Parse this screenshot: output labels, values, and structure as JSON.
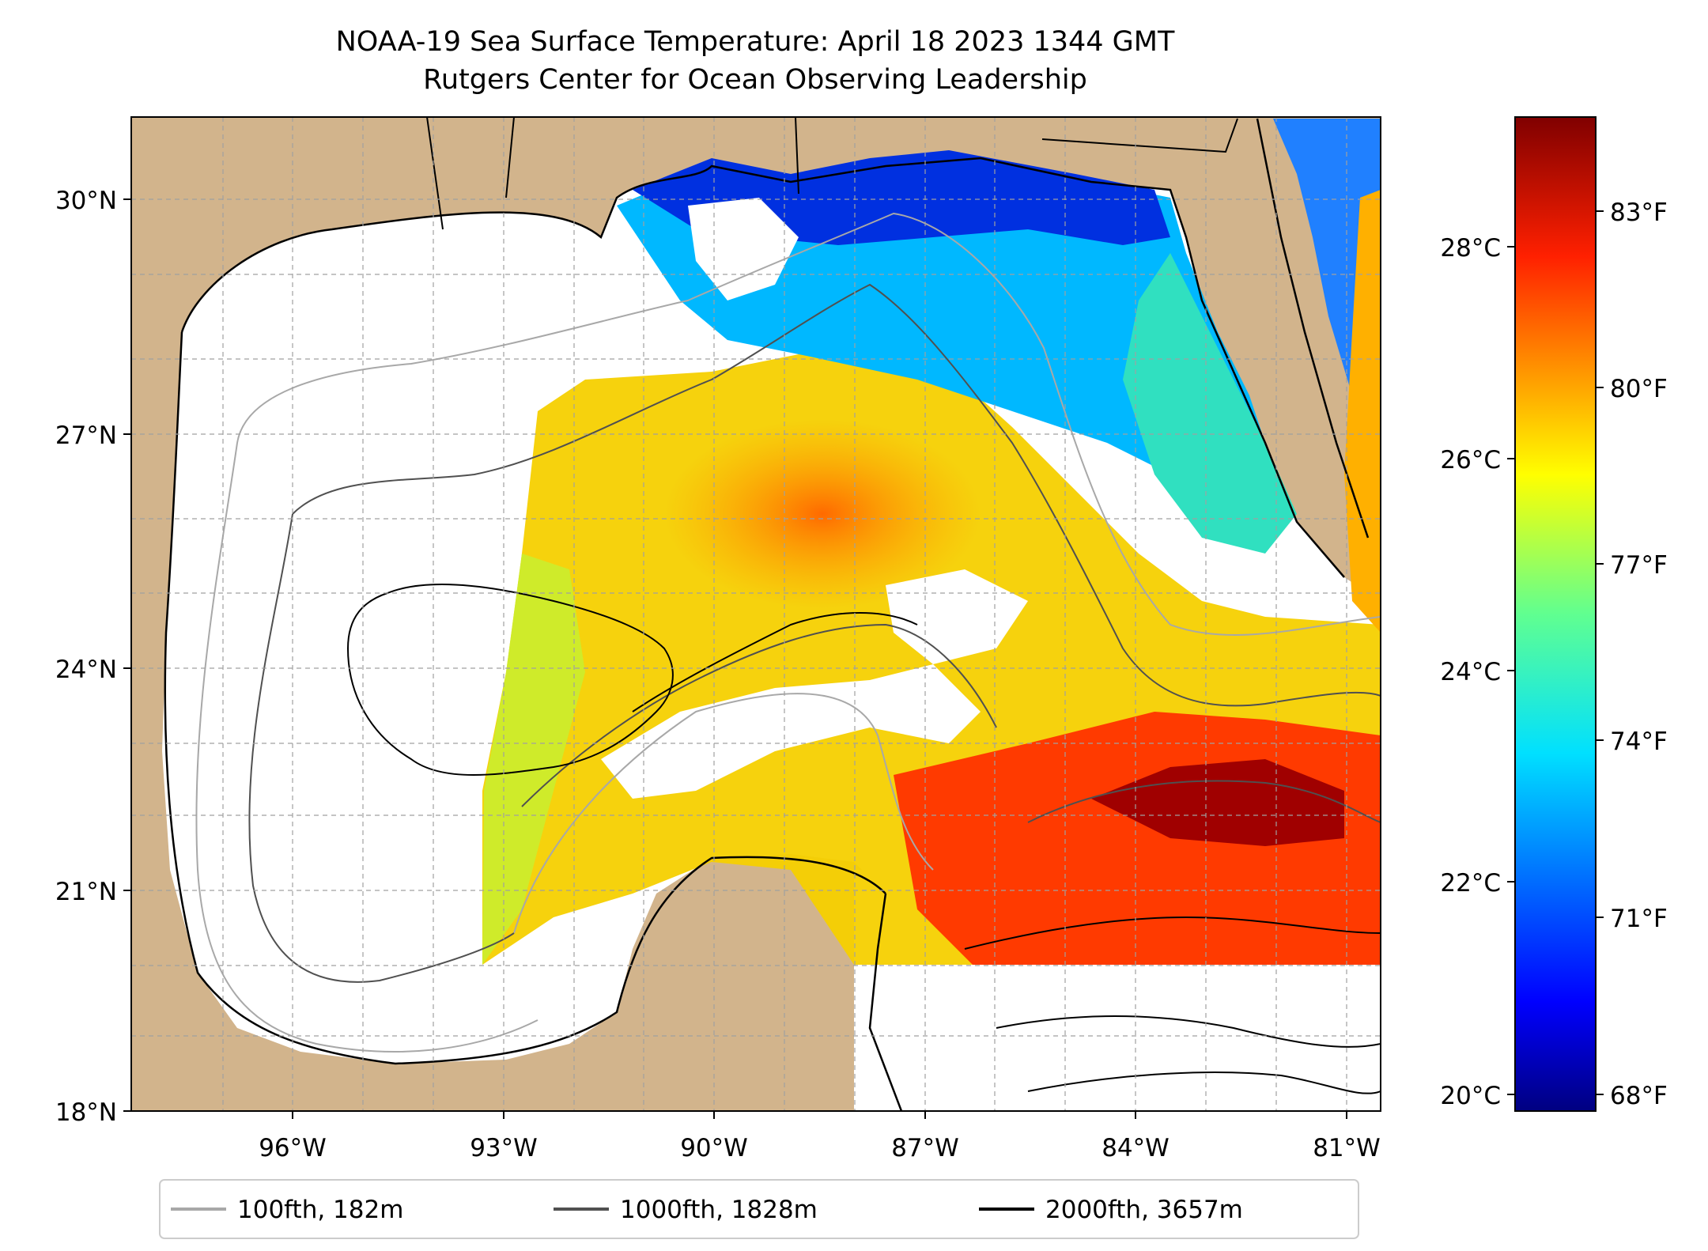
{
  "title": {
    "line1": "NOAA-19 Sea Surface Temperature: April 18 2023 1344 GMT",
    "line2": "Rutgers Center for Ocean Observing Leadership"
  },
  "map": {
    "lon_range": [
      -98,
      -80.2
    ],
    "lat_range": [
      18,
      31
    ],
    "lat_ticks": [
      {
        "value": 18,
        "label": "18°N"
      },
      {
        "value": 21,
        "label": "21°N"
      },
      {
        "value": 24,
        "label": "24°N"
      },
      {
        "value": 27,
        "label": "27°N"
      },
      {
        "value": 30,
        "label": "30°N"
      }
    ],
    "lon_ticks": [
      {
        "value": -96,
        "label": "96°W"
      },
      {
        "value": -93,
        "label": "93°W"
      },
      {
        "value": -90,
        "label": "90°W"
      },
      {
        "value": -87,
        "label": "87°W"
      },
      {
        "value": -84,
        "label": "84°W"
      },
      {
        "value": -81,
        "label": "81°W"
      }
    ],
    "grid": true,
    "land_color": "#d2b48c",
    "no_data_color": "#ffffff"
  },
  "colorbar": {
    "celsius_ticks": [
      {
        "value": 20,
        "label": "20°C"
      },
      {
        "value": 22,
        "label": "22°C"
      },
      {
        "value": 24,
        "label": "24°C"
      },
      {
        "value": 26,
        "label": "26°C"
      },
      {
        "value": 28,
        "label": "28°C"
      }
    ],
    "fahrenheit_ticks": [
      {
        "value": 68,
        "label": "68°F"
      },
      {
        "value": 71,
        "label": "71°F"
      },
      {
        "value": 74,
        "label": "74°F"
      },
      {
        "value": 77,
        "label": "77°F"
      },
      {
        "value": 80,
        "label": "80°F"
      },
      {
        "value": 83,
        "label": "83°F"
      }
    ],
    "range_c": [
      19.8,
      29.2
    ],
    "colormap": "jet"
  },
  "legend": {
    "entries": [
      {
        "label": "100fth, 182m",
        "color": "#a8a8a8"
      },
      {
        "label": "1000fth, 1828m",
        "color": "#505050"
      },
      {
        "label": "2000fth, 3657m",
        "color": "#000000"
      }
    ]
  }
}
